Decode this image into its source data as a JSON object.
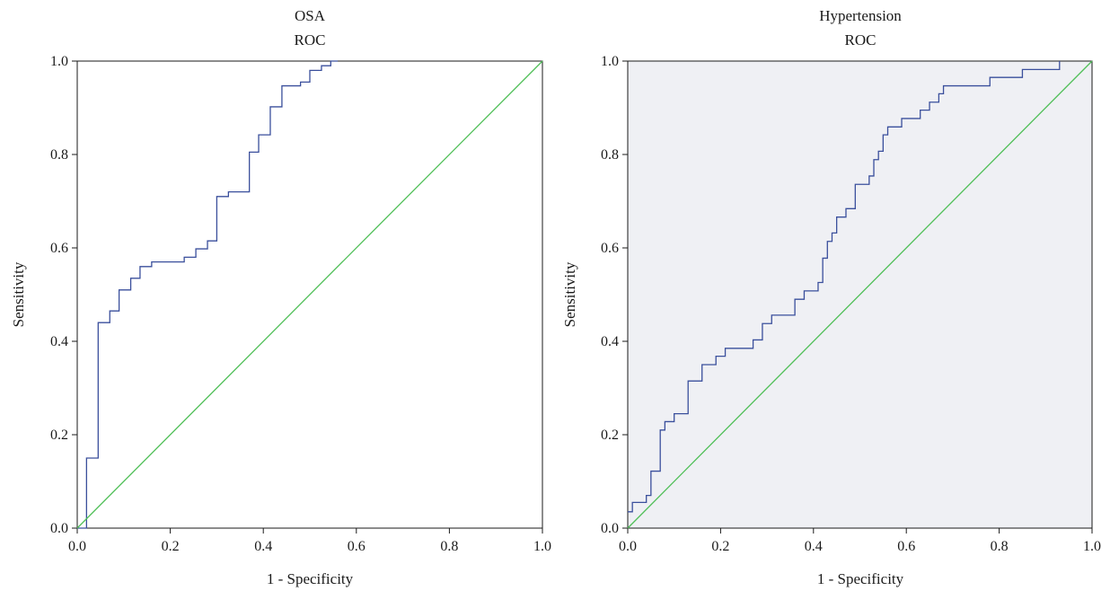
{
  "chart_data": [
    {
      "type": "line",
      "title": "OSA",
      "subtitle": "ROC",
      "xlabel": "1 - Specificity",
      "ylabel": "Sensitivity",
      "xlim": [
        0,
        1
      ],
      "ylim": [
        0,
        1
      ],
      "xticks": [
        "0.0",
        "0.2",
        "0.4",
        "0.6",
        "0.8",
        "1.0"
      ],
      "yticks": [
        "0.0",
        "0.2",
        "0.4",
        "0.6",
        "0.8",
        "1.0"
      ],
      "grid": false,
      "background": "#ffffff",
      "series": [
        {
          "color": "#3a4f9c",
          "step": true,
          "points": [
            [
              0.0,
              0.0
            ],
            [
              0.02,
              0.0
            ],
            [
              0.02,
              0.01
            ],
            [
              0.02,
              0.15
            ],
            [
              0.045,
              0.15
            ],
            [
              0.045,
              0.44
            ],
            [
              0.07,
              0.44
            ],
            [
              0.07,
              0.465
            ],
            [
              0.09,
              0.465
            ],
            [
              0.09,
              0.51
            ],
            [
              0.115,
              0.51
            ],
            [
              0.115,
              0.535
            ],
            [
              0.135,
              0.535
            ],
            [
              0.135,
              0.56
            ],
            [
              0.16,
              0.56
            ],
            [
              0.16,
              0.57
            ],
            [
              0.23,
              0.57
            ],
            [
              0.23,
              0.58
            ],
            [
              0.255,
              0.58
            ],
            [
              0.255,
              0.598
            ],
            [
              0.28,
              0.598
            ],
            [
              0.28,
              0.615
            ],
            [
              0.3,
              0.615
            ],
            [
              0.3,
              0.71
            ],
            [
              0.325,
              0.71
            ],
            [
              0.325,
              0.72
            ],
            [
              0.37,
              0.72
            ],
            [
              0.37,
              0.805
            ],
            [
              0.39,
              0.805
            ],
            [
              0.39,
              0.842
            ],
            [
              0.415,
              0.842
            ],
            [
              0.415,
              0.902
            ],
            [
              0.44,
              0.902
            ],
            [
              0.44,
              0.947
            ],
            [
              0.48,
              0.947
            ],
            [
              0.48,
              0.955
            ],
            [
              0.5,
              0.955
            ],
            [
              0.5,
              0.98
            ],
            [
              0.525,
              0.98
            ],
            [
              0.525,
              0.99
            ],
            [
              0.545,
              0.99
            ],
            [
              0.545,
              1.0
            ],
            [
              0.56,
              1.0
            ]
          ]
        },
        {
          "color": "#4fbf57",
          "step": false,
          "points": [
            [
              0,
              0
            ],
            [
              1,
              1
            ]
          ]
        }
      ]
    },
    {
      "type": "line",
      "title": "Hypertension",
      "subtitle": "ROC",
      "xlabel": "1 - Specificity",
      "ylabel": "Sensitivity",
      "xlim": [
        0,
        1
      ],
      "ylim": [
        0,
        1
      ],
      "xticks": [
        "0.0",
        "0.2",
        "0.4",
        "0.6",
        "0.8",
        "1.0"
      ],
      "yticks": [
        "0.0",
        "0.2",
        "0.4",
        "0.6",
        "0.8",
        "1.0"
      ],
      "grid": false,
      "background": "#eff0f4",
      "series": [
        {
          "color": "#3a4f9c",
          "step": true,
          "points": [
            [
              0.0,
              0.035
            ],
            [
              0.01,
              0.035
            ],
            [
              0.01,
              0.055
            ],
            [
              0.04,
              0.055
            ],
            [
              0.04,
              0.07
            ],
            [
              0.05,
              0.07
            ],
            [
              0.05,
              0.122
            ],
            [
              0.07,
              0.122
            ],
            [
              0.07,
              0.21
            ],
            [
              0.08,
              0.21
            ],
            [
              0.08,
              0.228
            ],
            [
              0.1,
              0.228
            ],
            [
              0.1,
              0.245
            ],
            [
              0.13,
              0.245
            ],
            [
              0.13,
              0.315
            ],
            [
              0.16,
              0.315
            ],
            [
              0.16,
              0.35
            ],
            [
              0.19,
              0.35
            ],
            [
              0.19,
              0.368
            ],
            [
              0.21,
              0.368
            ],
            [
              0.21,
              0.385
            ],
            [
              0.27,
              0.385
            ],
            [
              0.27,
              0.403
            ],
            [
              0.29,
              0.403
            ],
            [
              0.29,
              0.438
            ],
            [
              0.31,
              0.438
            ],
            [
              0.31,
              0.456
            ],
            [
              0.36,
              0.456
            ],
            [
              0.36,
              0.49
            ],
            [
              0.38,
              0.49
            ],
            [
              0.38,
              0.508
            ],
            [
              0.41,
              0.508
            ],
            [
              0.41,
              0.526
            ],
            [
              0.42,
              0.526
            ],
            [
              0.42,
              0.578
            ],
            [
              0.43,
              0.578
            ],
            [
              0.43,
              0.614
            ],
            [
              0.44,
              0.614
            ],
            [
              0.44,
              0.632
            ],
            [
              0.45,
              0.632
            ],
            [
              0.45,
              0.666
            ],
            [
              0.47,
              0.666
            ],
            [
              0.47,
              0.684
            ],
            [
              0.49,
              0.684
            ],
            [
              0.49,
              0.736
            ],
            [
              0.52,
              0.736
            ],
            [
              0.52,
              0.754
            ],
            [
              0.53,
              0.754
            ],
            [
              0.53,
              0.789
            ],
            [
              0.54,
              0.789
            ],
            [
              0.54,
              0.807
            ],
            [
              0.55,
              0.807
            ],
            [
              0.55,
              0.842
            ],
            [
              0.56,
              0.842
            ],
            [
              0.56,
              0.859
            ],
            [
              0.59,
              0.859
            ],
            [
              0.59,
              0.877
            ],
            [
              0.63,
              0.877
            ],
            [
              0.63,
              0.895
            ],
            [
              0.65,
              0.895
            ],
            [
              0.65,
              0.912
            ],
            [
              0.67,
              0.912
            ],
            [
              0.67,
              0.93
            ],
            [
              0.68,
              0.93
            ],
            [
              0.68,
              0.947
            ],
            [
              0.78,
              0.947
            ],
            [
              0.78,
              0.965
            ],
            [
              0.85,
              0.965
            ],
            [
              0.85,
              0.982
            ],
            [
              0.93,
              0.982
            ],
            [
              0.93,
              1.0
            ]
          ]
        },
        {
          "color": "#4fbf57",
          "step": false,
          "points": [
            [
              0,
              0
            ],
            [
              1,
              1
            ]
          ]
        }
      ]
    }
  ]
}
